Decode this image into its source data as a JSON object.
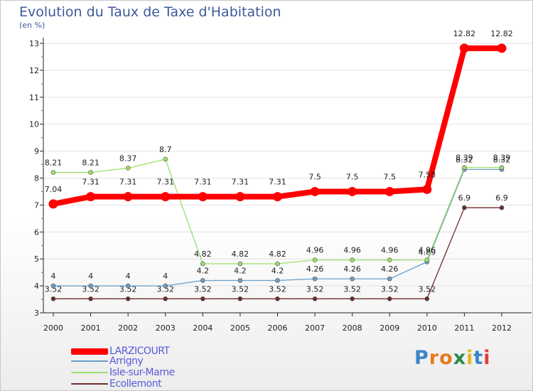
{
  "title": "Evolution du Taux de Taxe d'Habitation",
  "subtitle": "(en %)",
  "colors": {
    "title": "#3c5a9a",
    "LARZICOURT": "#ff0000",
    "Arrigny": "#6a9ec8",
    "Isle-sur-Marne": "#9ae06a",
    "Ecollemont": "#6e2a2a"
  },
  "chart_data": {
    "type": "line",
    "title": "Evolution du Taux de Taxe d'Habitation",
    "ylabel": "(en %)",
    "xlabel": "",
    "x": [
      "2000",
      "2001",
      "2002",
      "2003",
      "2004",
      "2005",
      "2006",
      "2007",
      "2008",
      "2009",
      "2010",
      "2011",
      "2012"
    ],
    "ylim": [
      3,
      13
    ],
    "yticks": [
      3,
      4,
      5,
      6,
      7,
      8,
      9,
      10,
      11,
      12,
      13
    ],
    "series": [
      {
        "name": "Ecollemont",
        "color": "#6e2a2a",
        "values": [
          3.52,
          3.52,
          3.52,
          3.52,
          3.52,
          3.52,
          3.52,
          3.52,
          3.52,
          3.52,
          3.52,
          6.9,
          6.9
        ],
        "labels": [
          "3.52",
          "3.52",
          "3.52",
          "3.52",
          "3.52",
          "3.52",
          "3.52",
          "3.52",
          "3.52",
          "3.52",
          "3.52",
          "6.9",
          "6.9"
        ]
      },
      {
        "name": "Arrigny",
        "color": "#6a9ec8",
        "values": [
          4,
          4,
          4,
          4,
          4.2,
          4.2,
          4.2,
          4.26,
          4.26,
          4.26,
          4.89,
          8.32,
          8.32
        ],
        "labels": [
          "4",
          "4",
          "4",
          "4",
          "4.2",
          "4.2",
          "4.2",
          "4.26",
          "4.26",
          "4.26",
          "4.89",
          "8.32",
          "8.32"
        ]
      },
      {
        "name": "Isle-sur-Marne",
        "color": "#9ae06a",
        "values": [
          8.21,
          8.21,
          8.37,
          8.7,
          4.82,
          4.82,
          4.82,
          4.96,
          4.96,
          4.96,
          4.96,
          8.39,
          8.39
        ],
        "labels": [
          "8.21",
          "8.21",
          "8.37",
          "8.7",
          "4.82",
          "4.82",
          "4.82",
          "4.96",
          "4.96",
          "4.96",
          "4.96",
          "8.39",
          "8.39"
        ]
      },
      {
        "name": "LARZICOURT",
        "color": "#ff0000",
        "values": [
          7.04,
          7.31,
          7.31,
          7.31,
          7.31,
          7.31,
          7.31,
          7.5,
          7.5,
          7.5,
          7.58,
          12.82,
          12.82
        ],
        "labels": [
          "7.04",
          "7.31",
          "7.31",
          "7.31",
          "7.31",
          "7.31",
          "7.31",
          "7.5",
          "7.5",
          "7.5",
          "7.58",
          "12.82",
          "12.82"
        ]
      }
    ],
    "legend": [
      "LARZICOURT",
      "Arrigny",
      "Isle-sur-Marne",
      "Ecollemont"
    ],
    "legend_position": "bottom-left"
  },
  "logo": {
    "text": "Proxiti",
    "letters": [
      "P",
      "r",
      "o",
      "x",
      "i",
      "t",
      "i"
    ],
    "letter_colors": [
      "#3a86c8",
      "#e87a1e",
      "#e87a1e",
      "#2a8a4a",
      "#e8b81e",
      "#3a86c8",
      "#e83a3a"
    ]
  }
}
